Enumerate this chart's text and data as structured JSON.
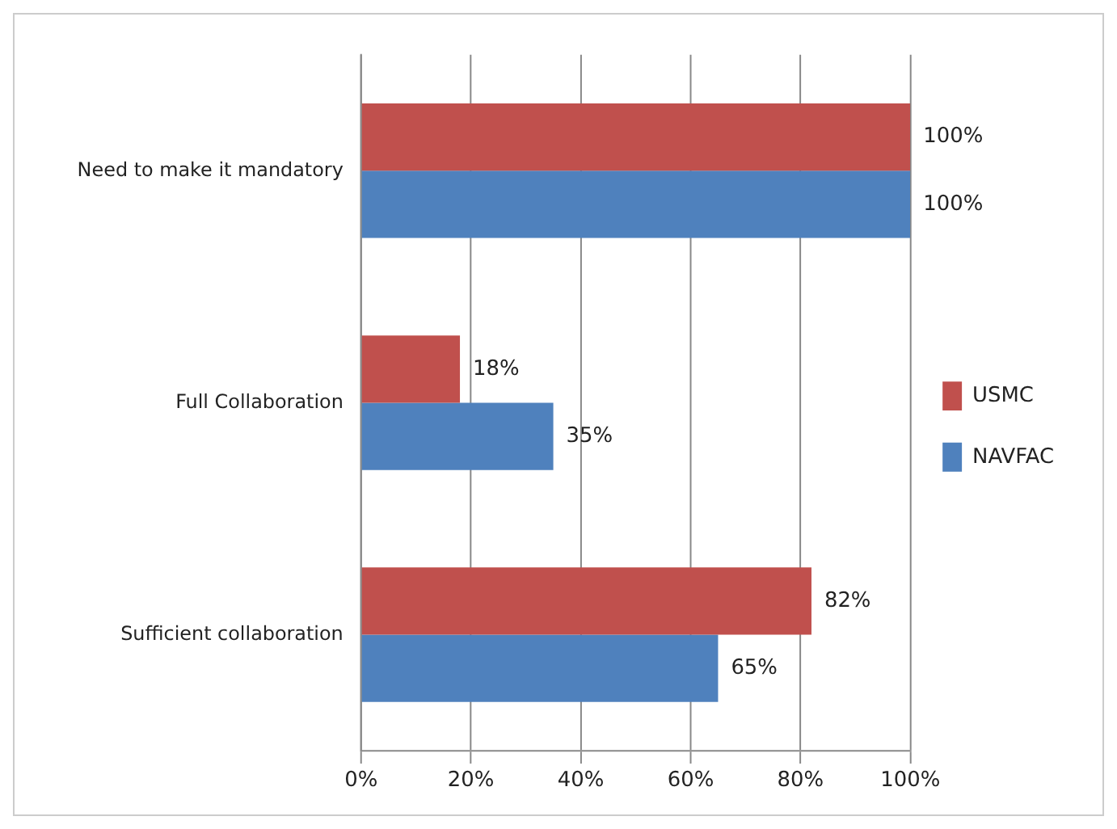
{
  "chart_data": {
    "type": "bar",
    "orientation": "horizontal",
    "categories": [
      "Need to make it mandatory",
      "Full Collaboration",
      "Sufficient collaboration"
    ],
    "series": [
      {
        "name": "USMC",
        "color": "#c0504d",
        "values": [
          100,
          18,
          82
        ],
        "value_labels": [
          "100%",
          "18%",
          "82%"
        ]
      },
      {
        "name": "NAVFAC",
        "color": "#4f81bd",
        "values": [
          100,
          35,
          65
        ],
        "value_labels": [
          "100%",
          "35%",
          "65%"
        ]
      }
    ],
    "xlim": [
      0,
      100
    ],
    "xticks": [
      {
        "value": 0,
        "label": "0%"
      },
      {
        "value": 20,
        "label": "20%"
      },
      {
        "value": 40,
        "label": "40%"
      },
      {
        "value": 60,
        "label": "60%"
      },
      {
        "value": 80,
        "label": "80%"
      },
      {
        "value": 100,
        "label": "100%"
      }
    ],
    "grid": "x",
    "legend": "right"
  }
}
